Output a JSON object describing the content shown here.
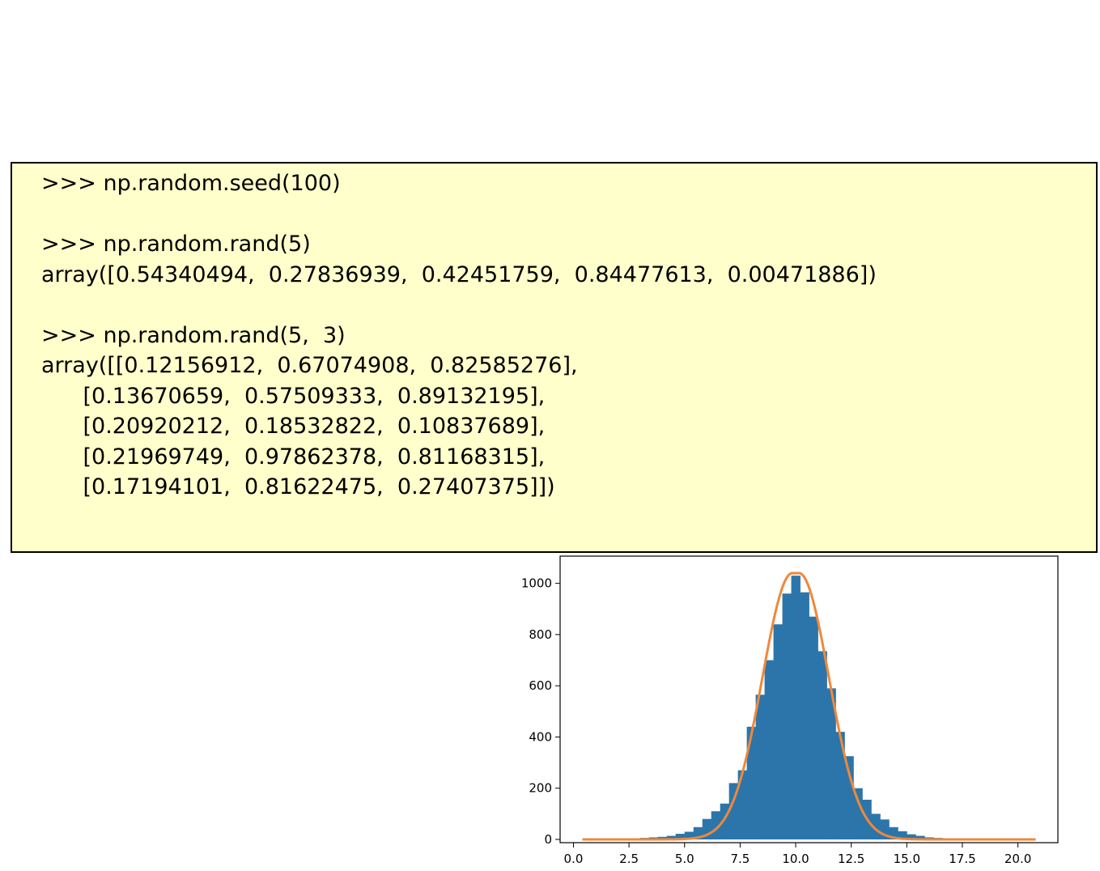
{
  "code": {
    "lines": [
      ">>> np.random.seed(100)",
      "",
      ">>> np.random.rand(5)",
      "array([0.54340494,  0.27836939,  0.42451759,  0.84477613,  0.00471886])",
      "",
      ">>> np.random.rand(5,  3)",
      "array([[0.12156912,  0.67074908,  0.82585276],",
      "      [0.13670659,  0.57509333,  0.89132195],",
      "      [0.20920212,  0.18532822,  0.10837689],",
      "      [0.21969749,  0.97862378,  0.81168315],",
      "      [0.17194101,  0.81622475,  0.27407375]])"
    ]
  },
  "chart_data": {
    "type": "bar",
    "xlim": [
      -0.6,
      21.8
    ],
    "ylim": [
      0,
      1100
    ],
    "xticks": [
      0.0,
      2.5,
      5.0,
      7.5,
      10.0,
      12.5,
      15.0,
      17.5,
      20.0
    ],
    "xtick_labels": [
      "0.0",
      "2.5",
      "5.0",
      "7.5",
      "10.0",
      "12.5",
      "15.0",
      "17.5",
      "20.0"
    ],
    "yticks": [
      0,
      200,
      400,
      600,
      800,
      1000
    ],
    "ytick_labels": [
      "0",
      "200",
      "400",
      "600",
      "800",
      "1000"
    ],
    "grid": false,
    "bin_width": 0.4,
    "bins": [
      {
        "x": 3.2,
        "count": 6
      },
      {
        "x": 3.6,
        "count": 8
      },
      {
        "x": 4.0,
        "count": 10
      },
      {
        "x": 4.4,
        "count": 14
      },
      {
        "x": 4.8,
        "count": 22
      },
      {
        "x": 5.2,
        "count": 30
      },
      {
        "x": 5.6,
        "count": 48
      },
      {
        "x": 6.0,
        "count": 80
      },
      {
        "x": 6.4,
        "count": 110
      },
      {
        "x": 6.8,
        "count": 140
      },
      {
        "x": 7.2,
        "count": 220
      },
      {
        "x": 7.6,
        "count": 270
      },
      {
        "x": 8.0,
        "count": 440
      },
      {
        "x": 8.4,
        "count": 565
      },
      {
        "x": 8.8,
        "count": 700
      },
      {
        "x": 9.2,
        "count": 840
      },
      {
        "x": 9.6,
        "count": 960
      },
      {
        "x": 10.0,
        "count": 1030
      },
      {
        "x": 10.4,
        "count": 965
      },
      {
        "x": 10.8,
        "count": 870
      },
      {
        "x": 11.2,
        "count": 735
      },
      {
        "x": 11.6,
        "count": 590
      },
      {
        "x": 12.0,
        "count": 420
      },
      {
        "x": 12.4,
        "count": 325
      },
      {
        "x": 12.8,
        "count": 200
      },
      {
        "x": 13.2,
        "count": 155
      },
      {
        "x": 13.6,
        "count": 100
      },
      {
        "x": 14.0,
        "count": 78
      },
      {
        "x": 14.4,
        "count": 48
      },
      {
        "x": 14.8,
        "count": 32
      },
      {
        "x": 15.2,
        "count": 20
      },
      {
        "x": 15.6,
        "count": 14
      },
      {
        "x": 16.0,
        "count": 8
      },
      {
        "x": 16.4,
        "count": 6
      },
      {
        "x": 16.8,
        "count": 4
      }
    ],
    "fit_curve": {
      "type": "line",
      "peak_x": 10.0,
      "peak_y": 1040,
      "plateau_halfwidth": 0.15,
      "rise_width": 1.35,
      "x_range": [
        0.4,
        20.8
      ]
    },
    "colors": {
      "bars": "#2c75aa",
      "curve": "#f0883a"
    }
  }
}
